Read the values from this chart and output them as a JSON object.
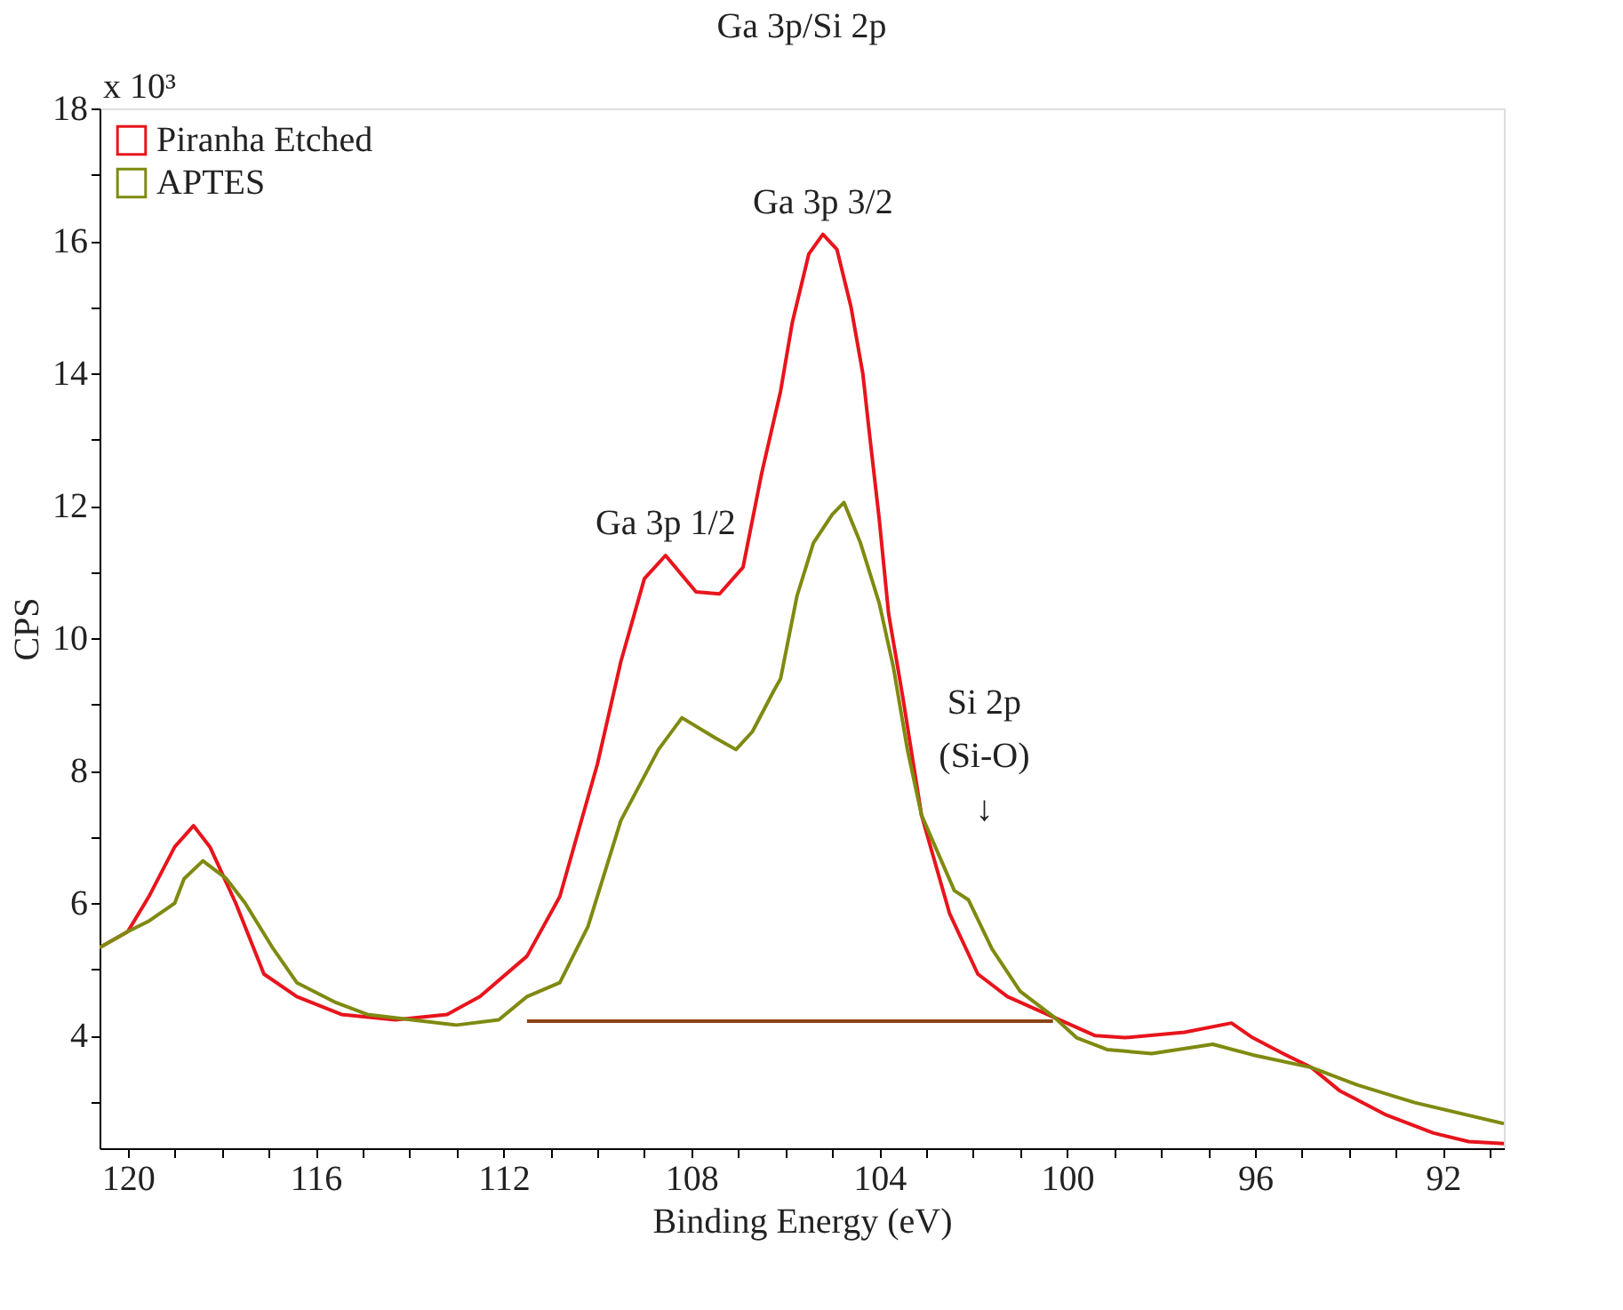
{
  "chart_data": {
    "type": "line",
    "title": "Ga 3p/Si 2p",
    "xlabel": "Binding Energy (eV)",
    "ylabel": "CPS",
    "xlim": [
      120.6,
      90.7
    ],
    "ylim": [
      2.3,
      18
    ],
    "xticks": [
      {
        "value": 91,
        "label": null
      },
      92,
      {
        "value": 93,
        "label": null
      },
      {
        "value": 94,
        "label": null
      },
      {
        "value": 95,
        "label": null
      },
      96,
      {
        "value": 97,
        "label": null
      },
      {
        "value": 98,
        "label": null
      },
      {
        "value": 99,
        "label": null
      },
      100,
      {
        "value": 101,
        "label": null
      },
      {
        "value": 102,
        "label": null
      },
      {
        "value": 103,
        "label": null
      },
      104,
      {
        "value": 105,
        "label": null
      },
      {
        "value": 106,
        "label": null
      },
      {
        "value": 107,
        "label": null
      },
      108,
      {
        "value": 109,
        "label": null
      },
      {
        "value": 110,
        "label": null
      },
      {
        "value": 111,
        "label": null
      },
      112,
      {
        "value": 113,
        "label": null
      },
      {
        "value": 114,
        "label": null
      },
      {
        "value": 115,
        "label": null
      },
      116,
      {
        "value": 117,
        "label": null
      },
      {
        "value": 118,
        "label": null
      },
      {
        "value": 119,
        "label": null
      },
      120
    ],
    "yticks": [
      {
        "value": 3,
        "label": null
      },
      4,
      {
        "value": 5,
        "label": null
      },
      6,
      {
        "value": 7,
        "label": null
      },
      8,
      {
        "value": 9,
        "label": null
      },
      10,
      {
        "value": 11,
        "label": null
      },
      12,
      {
        "value": 13,
        "label": null
      },
      14,
      {
        "value": 15,
        "label": null
      },
      16,
      {
        "value": 17,
        "label": null
      },
      18
    ],
    "grid": false,
    "legend": "top left",
    "marker": "none",
    "line_style": "solid",
    "series": [
      {
        "name": "Piranha Etched",
        "color": "#e8141c",
        "x": [
          120.6,
          120.0,
          119.55,
          119.0,
          118.6,
          118.25,
          117.7,
          117.1,
          116.4,
          115.45,
          114.3,
          113.2,
          112.5,
          111.5,
          110.8,
          110.0,
          109.5,
          109.0,
          108.55,
          107.9,
          107.4,
          106.9,
          106.5,
          106.1,
          105.85,
          105.5,
          105.2,
          104.9,
          104.6,
          104.35,
          104.2,
          104.0,
          103.8,
          103.5,
          103.1,
          102.5,
          101.9,
          101.27,
          100.26,
          99.4,
          98.77,
          97.5,
          96.5,
          96.05,
          95.4,
          94.8,
          94.2,
          93.2,
          92.2,
          91.45,
          90.7
        ],
        "values": [
          5.33,
          5.57,
          6.1,
          6.85,
          7.17,
          6.85,
          6.0,
          4.93,
          4.59,
          4.32,
          4.24,
          4.32,
          4.59,
          5.2,
          6.1,
          8.1,
          9.65,
          10.9,
          11.25,
          10.7,
          10.67,
          11.07,
          12.5,
          13.73,
          14.77,
          15.8,
          16.1,
          15.87,
          15.0,
          14.0,
          13.04,
          11.8,
          10.37,
          9.12,
          7.33,
          5.84,
          4.93,
          4.59,
          4.27,
          4.0,
          3.97,
          4.05,
          4.19,
          3.97,
          3.73,
          3.52,
          3.17,
          2.8,
          2.53,
          2.4,
          2.37
        ]
      },
      {
        "name": "APTES",
        "color": "#7f8a10",
        "x": [
          120.6,
          120.0,
          119.55,
          119.0,
          118.8,
          118.4,
          117.9,
          117.5,
          116.9,
          116.4,
          115.6,
          114.9,
          113.95,
          113.0,
          112.1,
          111.5,
          110.8,
          110.2,
          109.5,
          108.7,
          108.2,
          107.5,
          107.05,
          106.7,
          106.25,
          106.1,
          105.75,
          105.4,
          105.0,
          104.75,
          104.4,
          104.0,
          103.7,
          103.4,
          103.1,
          102.4,
          102.1,
          101.6,
          101.0,
          100.26,
          99.8,
          99.15,
          98.2,
          96.9,
          96.05,
          94.8,
          93.8,
          92.6,
          90.7
        ],
        "values": [
          5.33,
          5.57,
          5.73,
          6.0,
          6.37,
          6.64,
          6.37,
          6.0,
          5.31,
          4.8,
          4.51,
          4.32,
          4.24,
          4.16,
          4.24,
          4.59,
          4.8,
          5.65,
          7.25,
          8.32,
          8.8,
          8.5,
          8.32,
          8.59,
          9.2,
          9.39,
          10.64,
          11.44,
          11.87,
          12.05,
          11.44,
          10.53,
          9.57,
          8.32,
          7.33,
          6.19,
          6.05,
          5.31,
          4.67,
          4.27,
          3.97,
          3.79,
          3.73,
          3.87,
          3.71,
          3.52,
          3.25,
          2.99,
          2.67
        ]
      },
      {
        "type": "line",
        "color": "#8b4513",
        "x": [
          111.5,
          100.3
        ],
        "values": [
          4.22,
          4.22
        ]
      }
    ],
    "annotations": [
      "x 10³",
      {
        "text": "Ga 3p 1/2",
        "x": 108.55,
        "y": 11.25
      },
      {
        "text": "Ga 3p 3/2",
        "x": 105.2,
        "y": 16.1
      },
      "Si 2p\n(Si-O)\n↓"
    ]
  }
}
